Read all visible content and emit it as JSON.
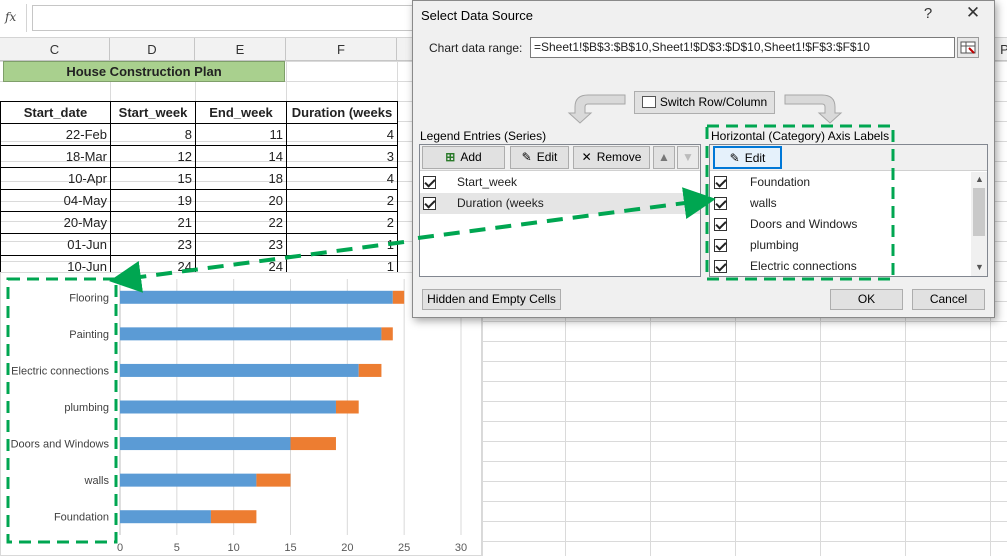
{
  "formula_bar": {
    "fx_label": "fx"
  },
  "sheet": {
    "columns": [
      "C",
      "D",
      "E",
      "F",
      "P"
    ],
    "title": "House Construction Plan",
    "table": {
      "headers": [
        "Start_date",
        "Start_week",
        "End_week",
        "Duration (weeks"
      ],
      "rows": [
        [
          "22-Feb",
          "8",
          "11",
          "4"
        ],
        [
          "18-Mar",
          "12",
          "14",
          "3"
        ],
        [
          "10-Apr",
          "15",
          "18",
          "4"
        ],
        [
          "04-May",
          "19",
          "20",
          "2"
        ],
        [
          "20-May",
          "21",
          "22",
          "2"
        ],
        [
          "01-Jun",
          "23",
          "23",
          "1"
        ],
        [
          "10-Jun",
          "24",
          "24",
          "1"
        ]
      ]
    }
  },
  "chart_data": {
    "type": "bar",
    "orientation": "horizontal",
    "stacked": true,
    "categories": [
      "Foundation",
      "walls",
      "Doors and Windows",
      "plumbing",
      "Electric connections",
      "Painting",
      "Flooring"
    ],
    "series": [
      {
        "values": [
          8,
          12,
          15,
          19,
          21,
          23,
          24
        ],
        "color": "#5b9bd5"
      },
      {
        "values": [
          4,
          3,
          4,
          2,
          2,
          1,
          1
        ],
        "color": "#ed7d31"
      }
    ],
    "xlim": [
      0,
      30
    ],
    "xticks": [
      "0",
      "5",
      "10",
      "15",
      "20",
      "25",
      "30"
    ],
    "grid": true
  },
  "dialog": {
    "title": "Select Data Source",
    "help_icon": "question-icon",
    "close_icon": "close-icon",
    "range_label": "Chart data range:",
    "range_value": "=Sheet1!$B$3:$B$10,Sheet1!$D$3:$D$10,Sheet1!$F$3:$F$10",
    "switch_label": "Switch Row/Column",
    "legend_label": "Legend Entries (Series)",
    "legend_buttons": {
      "add": "Add",
      "edit": "Edit",
      "remove": "Remove"
    },
    "series_items": [
      "Start_week",
      "Duration (weeks"
    ],
    "axis_label": "Horizontal (Category) Axis Labels",
    "axis_edit": "Edit",
    "axis_items": [
      "Foundation",
      "walls",
      "Doors and Windows",
      "plumbing",
      "Electric connections"
    ],
    "hidden_label": "Hidden and Empty Cells",
    "ok_label": "OK",
    "cancel_label": "Cancel"
  },
  "colors": {
    "highlight": "#00a651",
    "header_fill": "#a9d08e",
    "selection": "#e5e5e5"
  }
}
